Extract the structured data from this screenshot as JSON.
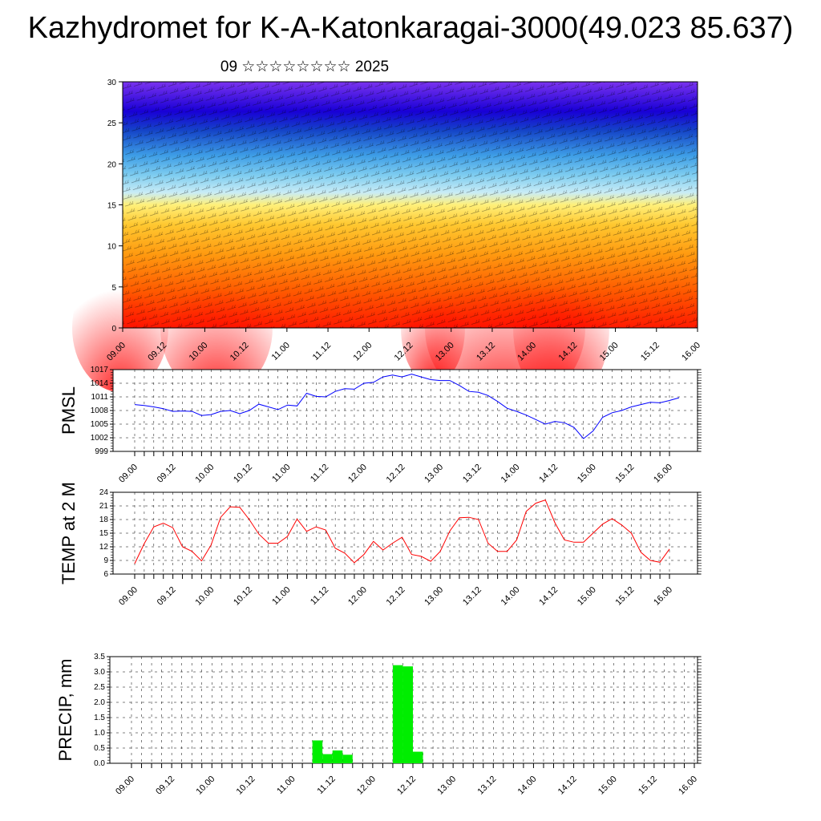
{
  "title": "Kazhydromet for K-A-Katonkaragai-3000(49.023 85.637)",
  "subtitle": "09 ☆☆☆☆☆☆☆☆ 2025",
  "x_tick_labels": [
    "09.00",
    "09.12",
    "10.00",
    "10.12",
    "11.00",
    "11.12",
    "12.00",
    "12.12",
    "13.00",
    "13.12",
    "14.00",
    "14.12",
    "15.00",
    "15.12",
    "16.00"
  ],
  "chart_data": [
    {
      "type": "heatmap",
      "name_hint": "vertical cross-section",
      "xlim": [
        0,
        168
      ],
      "ylim": [
        0,
        30
      ],
      "yticks": [
        0,
        5,
        10,
        15,
        20,
        25,
        30
      ],
      "x_tick_labels": [
        "09.00",
        "09.12",
        "10.00",
        "10.12",
        "11.00",
        "11.12",
        "12.00",
        "12.12",
        "13.00",
        "13.12",
        "14.00",
        "14.12",
        "15.00",
        "15.12",
        "16.00"
      ]
    },
    {
      "type": "line",
      "ylabel": "PMSL",
      "ylim": [
        999,
        1017
      ],
      "yticks": [
        999,
        1002,
        1005,
        1008,
        1011,
        1014,
        1017
      ],
      "color": "#0000ff",
      "x_step_hours": 3,
      "values": [
        1009.3,
        1009.1,
        1008.8,
        1008.4,
        1007.8,
        1007.9,
        1007.8,
        1006.9,
        1007.1,
        1007.8,
        1008.0,
        1007.3,
        1008.0,
        1009.4,
        1008.8,
        1008.2,
        1009.2,
        1009.0,
        1011.8,
        1011.1,
        1011.0,
        1012.2,
        1012.8,
        1012.7,
        1014.0,
        1014.2,
        1015.4,
        1015.8,
        1015.4,
        1016.0,
        1015.4,
        1014.8,
        1014.6,
        1014.6,
        1013.5,
        1012.2,
        1012.0,
        1011.3,
        1010.0,
        1008.5,
        1007.8,
        1007.0,
        1006.0,
        1005.0,
        1005.6,
        1005.3,
        1004.3,
        1001.8,
        1003.5,
        1006.5,
        1007.5,
        1008.0,
        1008.8,
        1009.3,
        1009.8,
        1009.7,
        1010.2,
        1010.8
      ]
    },
    {
      "type": "line",
      "ylabel": "TEMP at 2 M",
      "ylim": [
        6,
        24
      ],
      "yticks": [
        6,
        9,
        12,
        15,
        18,
        21,
        24
      ],
      "color": "#ff0000",
      "x_step_hours": 3,
      "values": [
        8.3,
        12.7,
        16.4,
        17.2,
        16.2,
        12.0,
        11.0,
        8.9,
        12.4,
        18.5,
        20.8,
        20.7,
        18.0,
        14.8,
        12.8,
        12.8,
        14.3,
        18.1,
        15.4,
        16.4,
        15.7,
        11.7,
        10.6,
        8.5,
        10.3,
        13.2,
        11.3,
        12.8,
        14.1,
        10.3,
        9.9,
        8.8,
        11.0,
        15.5,
        18.4,
        18.5,
        18.0,
        12.8,
        11.0,
        11.0,
        13.5,
        19.8,
        21.6,
        22.3,
        17.3,
        13.5,
        13.0,
        13.0,
        15.0,
        17.0,
        18.2,
        16.8,
        15.0,
        10.8,
        9.0,
        8.6,
        11.5
      ]
    },
    {
      "type": "bar",
      "ylabel": "PRECIP, mm",
      "ylim": [
        0,
        3.5
      ],
      "yticks": [
        "0.0",
        "0.5",
        "1.0",
        "1.5",
        "2.0",
        "2.5",
        "3.0",
        "3.5"
      ],
      "color": "#00ee00",
      "x_step_hours": 3,
      "values": [
        0,
        0,
        0,
        0,
        0,
        0,
        0,
        0,
        0,
        0,
        0,
        0,
        0,
        0,
        0,
        0,
        0,
        0,
        0.75,
        0.3,
        0.42,
        0.28,
        0,
        0,
        0,
        0,
        3.22,
        3.18,
        0.38,
        0,
        0,
        0,
        0,
        0,
        0,
        0,
        0,
        0,
        0,
        0,
        0,
        0,
        0,
        0,
        0,
        0,
        0,
        0,
        0,
        0,
        0,
        0,
        0,
        0,
        0,
        0
      ]
    }
  ]
}
